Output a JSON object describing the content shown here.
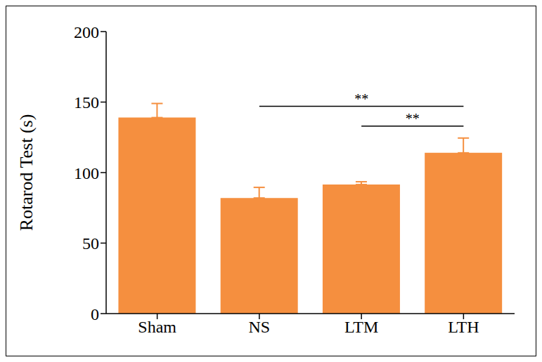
{
  "chart_data": {
    "type": "bar",
    "y_label": "Rotarod Test (s)",
    "categories": [
      "Sham",
      "NS",
      "LTM",
      "LTH"
    ],
    "values": [
      139,
      82,
      91.5,
      114
    ],
    "errors": [
      10,
      7.5,
      2,
      10.5
    ],
    "color": "#f58f3f",
    "ylim": [
      0,
      200
    ],
    "yticks": [
      0,
      50,
      100,
      150,
      200
    ],
    "grid": false,
    "annotations": [
      {
        "from": "NS",
        "to": "LTH",
        "y": 147,
        "text": "**"
      },
      {
        "from": "LTM",
        "to": "LTH",
        "y": 133,
        "text": "**"
      }
    ]
  }
}
